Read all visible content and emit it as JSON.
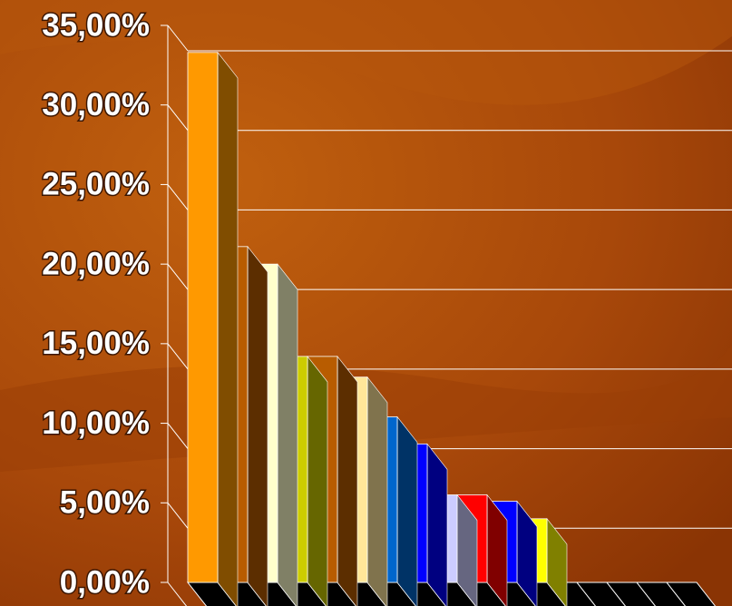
{
  "chart_data": {
    "type": "bar3d",
    "values": [
      33.3,
      21.1,
      20.0,
      14.2,
      14.2,
      12.9,
      10.4,
      8.7,
      5.5,
      5.5,
      5.1,
      4.0
    ],
    "colors": [
      "#ff9900",
      "#b85c00",
      "#ffffcc",
      "#cccc00",
      "#b85c00",
      "#ffe699",
      "#0066cc",
      "#0000ff",
      "#ccccff",
      "#ff0000",
      "#0000ff",
      "#ffff00"
    ],
    "ylim": [
      0,
      35
    ],
    "yticks": [
      {
        "value": 0,
        "label": "0,00%"
      },
      {
        "value": 5,
        "label": "5,00%"
      },
      {
        "value": 10,
        "label": "10,00%"
      },
      {
        "value": 15,
        "label": "15,00%"
      },
      {
        "value": 20,
        "label": "20,00%"
      },
      {
        "value": 25,
        "label": "25,00%"
      },
      {
        "value": 30,
        "label": "30,00%"
      },
      {
        "value": 35,
        "label": "35,00%"
      }
    ],
    "grid": true
  }
}
